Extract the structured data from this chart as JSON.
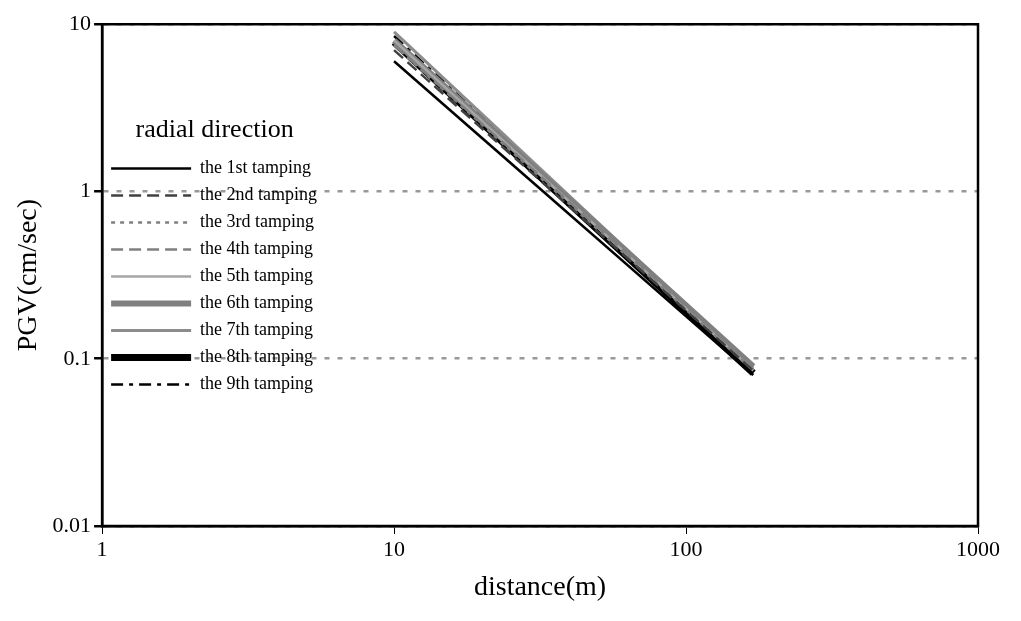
{
  "chart_data": {
    "type": "line",
    "xlabel": "distance(m)",
    "ylabel": "PGV(cm/sec)",
    "legend_title": "radial direction",
    "log": "xy",
    "grid": "y",
    "legend": "left",
    "marker": "none",
    "xlim": [
      1,
      1000
    ],
    "xticks": [
      1,
      10,
      100,
      1000
    ],
    "ylim": [
      0.01,
      10
    ],
    "yticks": [
      0.01,
      0.1,
      1,
      10
    ],
    "x": [
      10,
      170
    ],
    "series": [
      {
        "name": "the 1st tamping",
        "color": "#000000",
        "line_style": "solid",
        "values": [
          6.0,
          0.08
        ]
      },
      {
        "name": "the 2nd tamping",
        "color": "#404040",
        "line_style": "dashed",
        "values": [
          7.0,
          0.085
        ]
      },
      {
        "name": "the 3rd tamping",
        "color": "#808080",
        "line_style": "dotted",
        "values": [
          7.5,
          0.085
        ]
      },
      {
        "name": "the 4th tamping",
        "color": "#808080",
        "line_style": "dashed",
        "values": [
          7.5,
          0.09
        ]
      },
      {
        "name": "the 5th tamping",
        "color": "#a6a6a6",
        "line_style": "solid",
        "values": [
          8.0,
          0.085
        ]
      },
      {
        "name": "the 6th tamping",
        "color": "#808080",
        "line_style": "solid",
        "values": [
          8.0,
          0.09
        ]
      },
      {
        "name": "the 7th tamping",
        "color": "#8c8c8c",
        "line_style": "solid",
        "values": [
          9.0,
          0.088
        ]
      },
      {
        "name": "the 8th tamping",
        "color": "#000000",
        "line_style": "solid",
        "values": [
          7.8,
          0.082
        ]
      },
      {
        "name": "the 9th tamping",
        "color": "#000000",
        "line_style": "dashed",
        "values": [
          8.5,
          0.09
        ]
      }
    ]
  }
}
